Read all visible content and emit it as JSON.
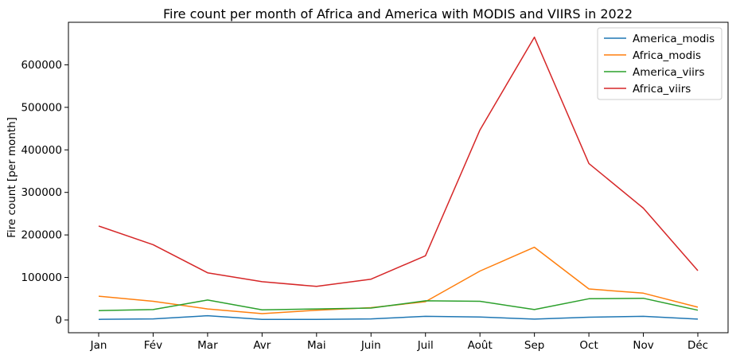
{
  "chart_data": {
    "type": "line",
    "title": "Fire count per month of Africa and America with MODIS and VIIRS in 2022",
    "xlabel": "",
    "ylabel": "Fire count [per month]",
    "categories": [
      "Jan",
      "Fév",
      "Mar",
      "Avr",
      "Mai",
      "Juin",
      "Juil",
      "Août",
      "Sep",
      "Oct",
      "Nov",
      "Déc"
    ],
    "ylim": [
      -30000,
      700000
    ],
    "yticks": [
      0,
      100000,
      200000,
      300000,
      400000,
      500000,
      600000
    ],
    "ytick_labels": [
      "0",
      "100000",
      "200000",
      "300000",
      "400000",
      "500000",
      "600000"
    ],
    "grid": false,
    "legend_position": "top-right",
    "series": [
      {
        "name": "America_modis",
        "color": "#1f77b4",
        "values": [
          1500,
          2500,
          10000,
          1500,
          1500,
          2500,
          8500,
          7000,
          2000,
          6500,
          8500,
          2000
        ]
      },
      {
        "name": "Africa_modis",
        "color": "#ff7f0e",
        "values": [
          56000,
          44000,
          26000,
          15000,
          23000,
          29000,
          43000,
          115000,
          171000,
          73000,
          63000,
          30000
        ]
      },
      {
        "name": "America_viirs",
        "color": "#2ca02c",
        "values": [
          22000,
          24500,
          47000,
          24000,
          26000,
          28000,
          45000,
          44000,
          24500,
          50000,
          51000,
          23000
        ]
      },
      {
        "name": "Africa_viirs",
        "color": "#d62728",
        "values": [
          221000,
          177000,
          111000,
          90000,
          79000,
          96000,
          151000,
          447000,
          665000,
          368000,
          263000,
          116000
        ]
      }
    ]
  }
}
